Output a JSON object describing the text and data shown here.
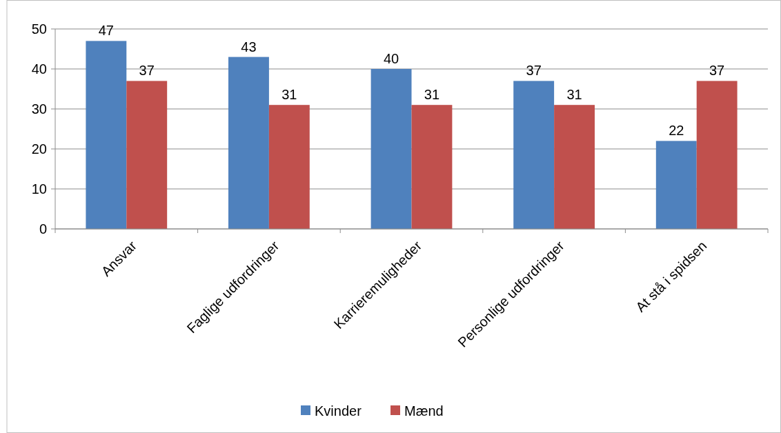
{
  "chart_data": {
    "type": "bar",
    "categories": [
      "Ansvar",
      "Faglige udfordringer",
      "Karrieremuligheder",
      "Personlige udfordringer",
      "At stå i spidsen"
    ],
    "series": [
      {
        "name": "Kvinder",
        "color": "#4f81bd",
        "values": [
          47,
          43,
          40,
          37,
          22
        ]
      },
      {
        "name": "Mænd",
        "color": "#c0504d",
        "values": [
          37,
          31,
          31,
          31,
          37
        ]
      }
    ],
    "ylim": [
      0,
      50
    ],
    "yticks": [
      0,
      10,
      20,
      30,
      40,
      50
    ],
    "grid": "y",
    "legend": "bottom",
    "data_labels": true
  }
}
